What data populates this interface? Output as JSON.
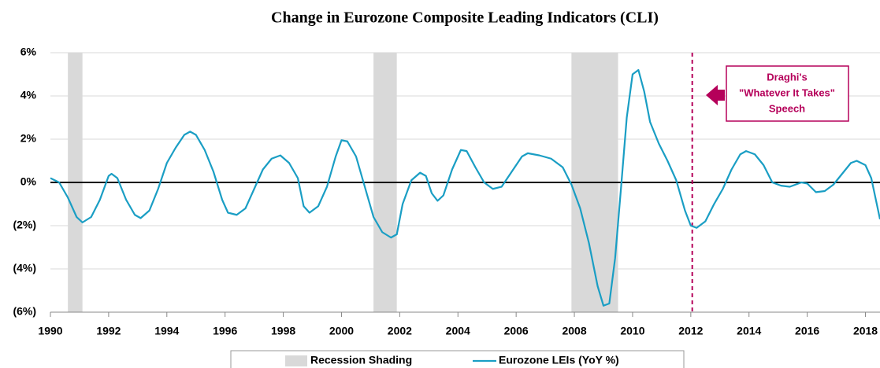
{
  "chart_data": {
    "type": "line",
    "title": "Change in Eurozone Composite Leading Indicators (CLI)",
    "x": [
      1990.0,
      1990.3,
      1990.6,
      1990.9,
      1991.1,
      1991.4,
      1991.7,
      1992.0,
      1992.1,
      1992.3,
      1992.6,
      1992.9,
      1993.1,
      1993.4,
      1993.7,
      1994.0,
      1994.3,
      1994.6,
      1994.8,
      1995.0,
      1995.3,
      1995.6,
      1995.9,
      1996.1,
      1996.4,
      1996.7,
      1997.0,
      1997.3,
      1997.6,
      1997.9,
      1998.2,
      1998.5,
      1998.7,
      1998.9,
      1999.2,
      1999.5,
      1999.8,
      2000.0,
      2000.2,
      2000.5,
      2000.8,
      2001.1,
      2001.4,
      2001.7,
      2001.9,
      2002.1,
      2002.4,
      2002.7,
      2002.9,
      2003.1,
      2003.3,
      2003.5,
      2003.8,
      2004.1,
      2004.3,
      2004.6,
      2004.9,
      2005.2,
      2005.5,
      2005.8,
      2006.2,
      2006.4,
      2006.8,
      2007.2,
      2007.6,
      2007.9,
      2008.2,
      2008.5,
      2008.8,
      2009.0,
      2009.2,
      2009.4,
      2009.6,
      2009.8,
      2010.0,
      2010.2,
      2010.4,
      2010.6,
      2010.9,
      2011.2,
      2011.5,
      2011.8,
      2012.0,
      2012.2,
      2012.5,
      2012.8,
      2013.1,
      2013.4,
      2013.7,
      2013.9,
      2014.2,
      2014.5,
      2014.8,
      2015.1,
      2015.4,
      2015.8,
      2016.0,
      2016.3,
      2016.6,
      2016.9,
      2017.2,
      2017.5,
      2017.7,
      2018.0,
      2018.2,
      2018.5
    ],
    "series": [
      {
        "name": "Eurozone LEIs (YoY %)",
        "color": "#1a9ec4",
        "values": [
          0.2,
          0.0,
          -0.7,
          -1.6,
          -1.85,
          -1.6,
          -0.8,
          0.3,
          0.4,
          0.2,
          -0.8,
          -1.5,
          -1.65,
          -1.3,
          -0.3,
          0.9,
          1.6,
          2.2,
          2.35,
          2.2,
          1.5,
          0.5,
          -0.8,
          -1.4,
          -1.5,
          -1.2,
          -0.3,
          0.6,
          1.1,
          1.25,
          0.9,
          0.2,
          -1.1,
          -1.4,
          -1.1,
          -0.2,
          1.2,
          1.95,
          1.9,
          1.2,
          -0.2,
          -1.6,
          -2.3,
          -2.55,
          -2.4,
          -1.0,
          0.1,
          0.45,
          0.3,
          -0.5,
          -0.85,
          -0.6,
          0.6,
          1.5,
          1.45,
          0.7,
          0.0,
          -0.3,
          -0.2,
          0.4,
          1.2,
          1.35,
          1.25,
          1.1,
          0.7,
          -0.1,
          -1.2,
          -2.8,
          -4.8,
          -5.7,
          -5.6,
          -3.5,
          -0.3,
          3.0,
          5.0,
          5.2,
          4.2,
          2.8,
          1.8,
          1.0,
          0.1,
          -1.3,
          -2.0,
          -2.1,
          -1.8,
          -1.0,
          -0.3,
          0.6,
          1.3,
          1.45,
          1.3,
          0.8,
          0.0,
          -0.15,
          -0.2,
          0.0,
          -0.05,
          -0.45,
          -0.4,
          -0.1,
          0.4,
          0.9,
          1.0,
          0.8,
          0.2,
          -1.7
        ]
      }
    ],
    "recession_name": "Recession Shading",
    "recession_color": "#d9d9d9",
    "recessions": [
      [
        1990.6,
        1991.1
      ],
      [
        2001.1,
        2001.9
      ],
      [
        2007.9,
        2009.5
      ]
    ],
    "event_x": 2012.05,
    "event_color": "#b5005a",
    "annotation": [
      "Draghi's",
      "\"Whatever It Takes\"",
      "Speech"
    ],
    "xlim": [
      1990,
      2018.5
    ],
    "ylim": [
      -6,
      6
    ],
    "xticks": [
      1990,
      1992,
      1994,
      1996,
      1998,
      2000,
      2002,
      2004,
      2006,
      2008,
      2010,
      2012,
      2014,
      2016,
      2018
    ],
    "yticks": [
      {
        "value": 6,
        "label": "6%"
      },
      {
        "value": 4,
        "label": "4%"
      },
      {
        "value": 2,
        "label": "2%"
      },
      {
        "value": 0,
        "label": "0%"
      },
      {
        "value": -2,
        "label": "(2%)"
      },
      {
        "value": -4,
        "label": "(4%)"
      },
      {
        "value": -6,
        "label": "(6%)"
      }
    ],
    "grid": true
  }
}
